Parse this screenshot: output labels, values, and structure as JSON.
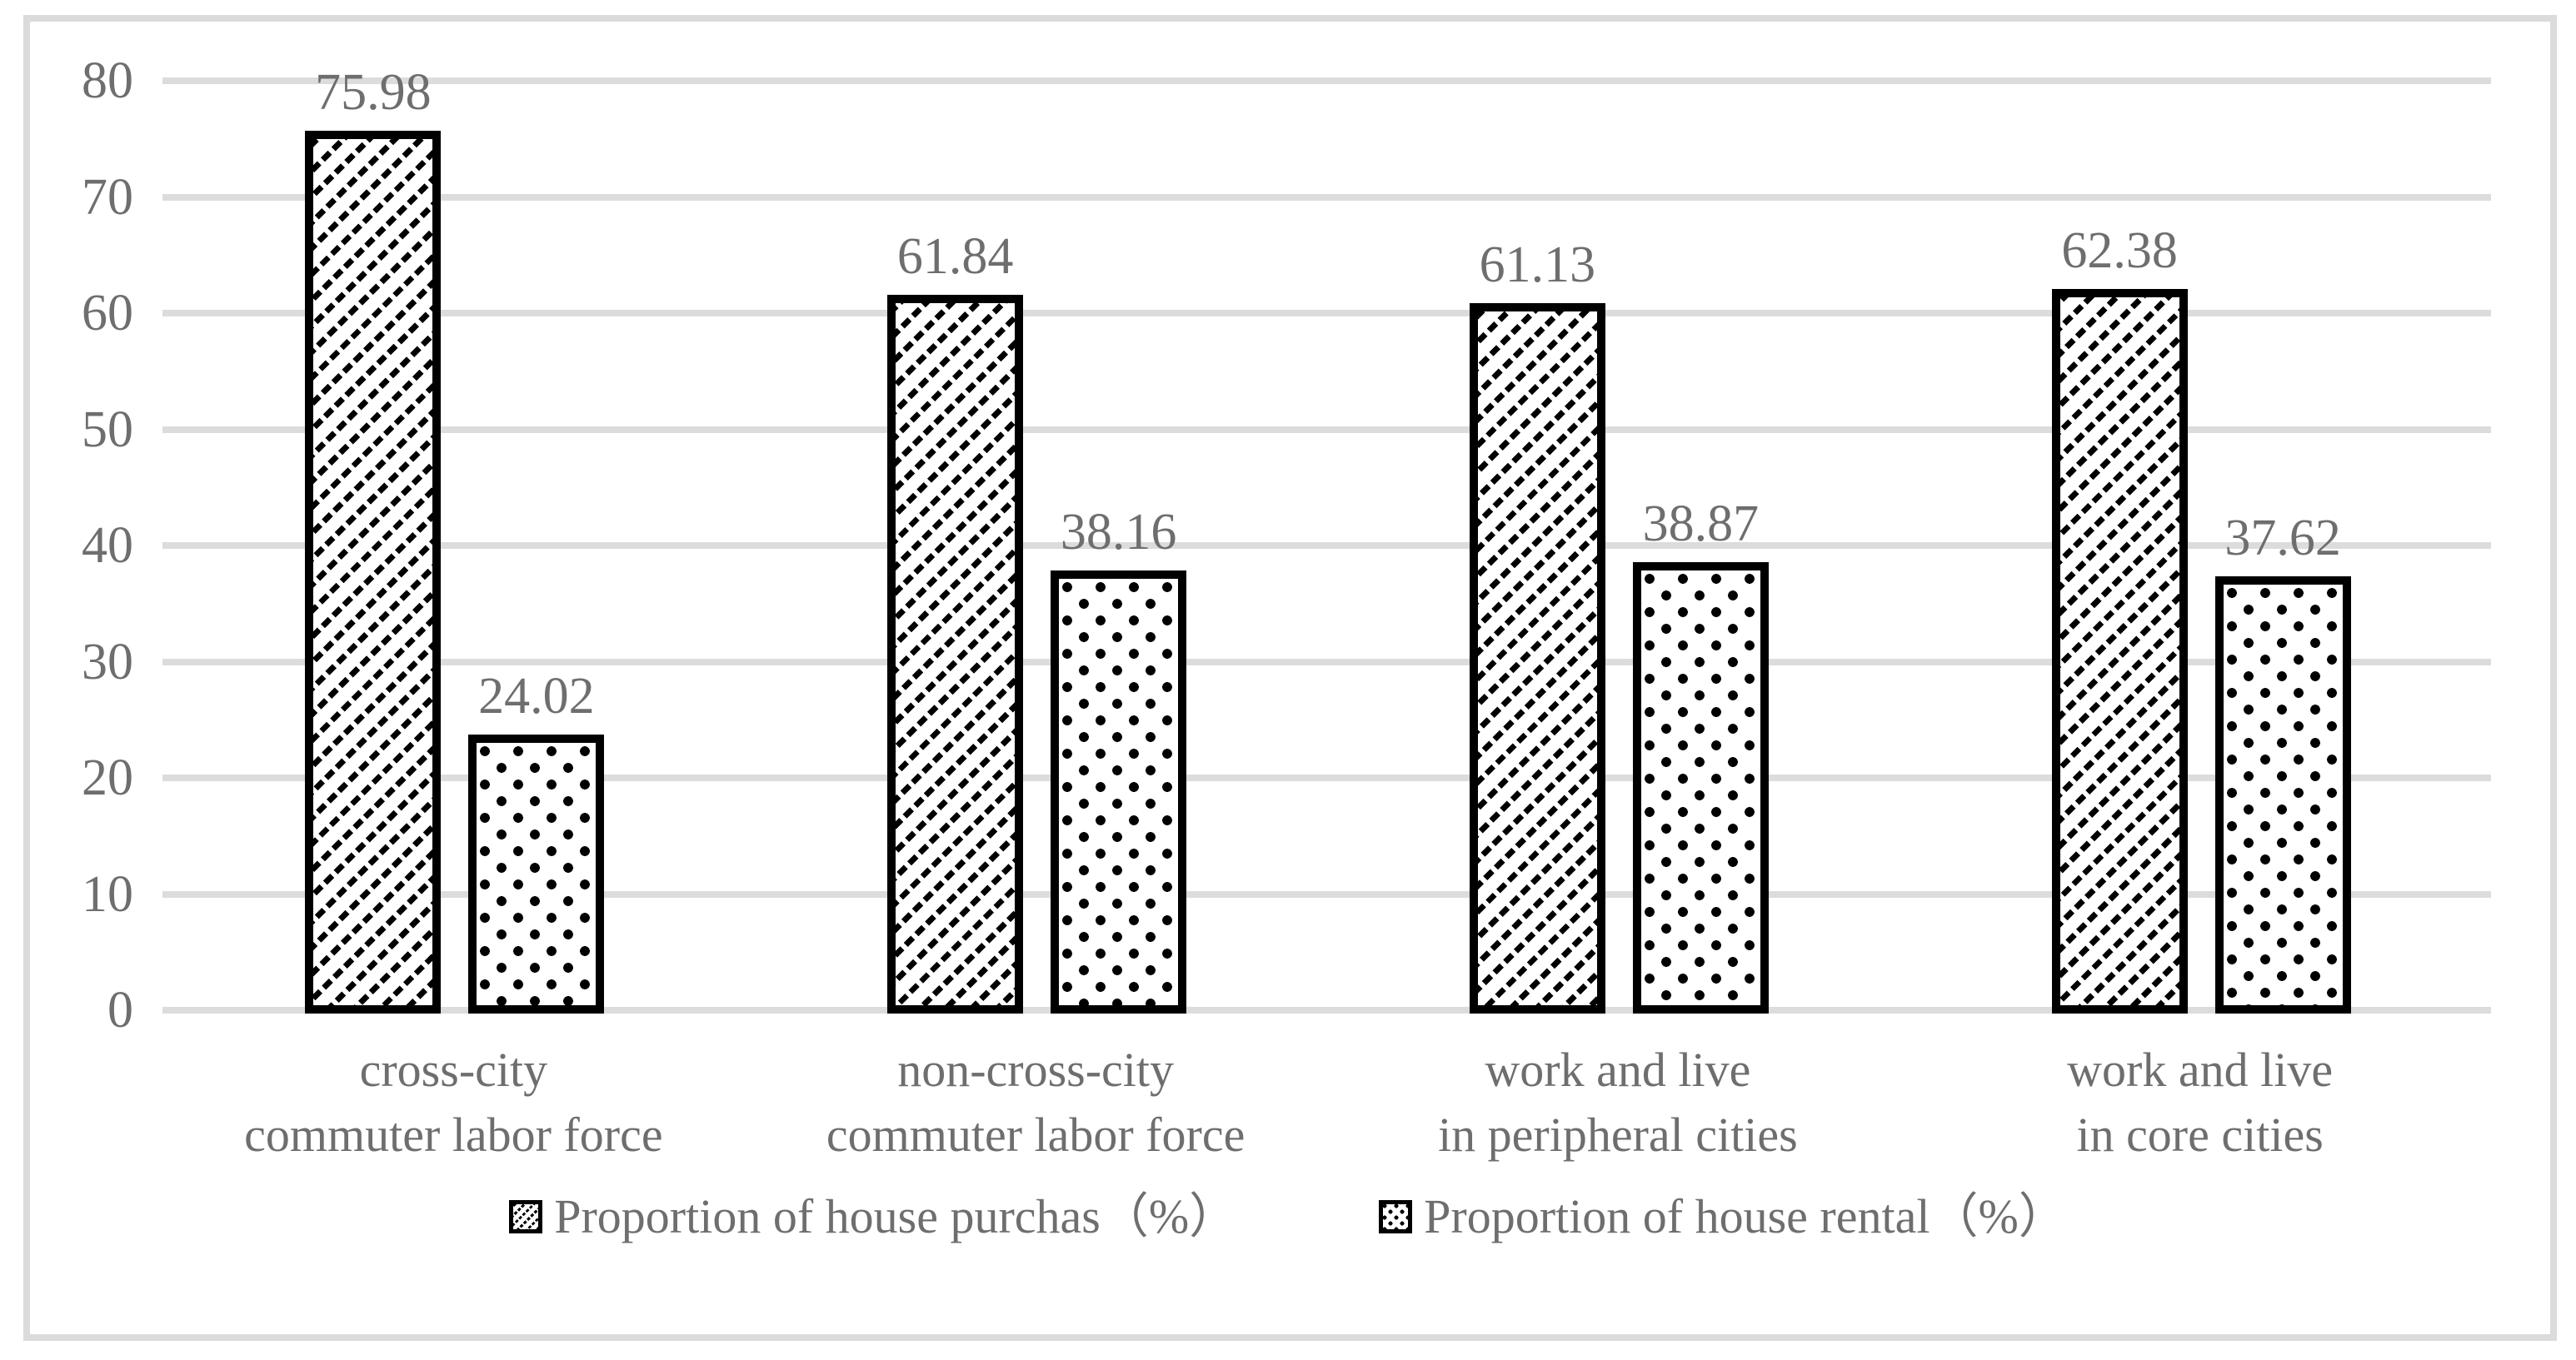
{
  "chart_data": {
    "type": "bar",
    "title": "",
    "categories": [
      "cross-city\ncommuter labor force",
      "non-cross-city\ncommuter labor force",
      "work and live\nin peripheral cities",
      "work and live\nin core cities"
    ],
    "series": [
      {
        "name": "Proportion of house purchas（%）",
        "pattern": "dashed-diagonal-hatch",
        "values": [
          75.98,
          61.84,
          61.13,
          62.38
        ]
      },
      {
        "name": "Proportion of house rental（%）",
        "pattern": "dotted",
        "values": [
          24.02,
          38.16,
          38.87,
          37.62
        ]
      }
    ],
    "data_labels": [
      "75.98",
      "24.02",
      "61.84",
      "38.16",
      "61.13",
      "38.87",
      "62.38",
      "37.62"
    ],
    "ylim": [
      0,
      80
    ],
    "yticks": [
      0,
      10,
      20,
      30,
      40,
      50,
      60,
      70,
      80
    ],
    "grid": true,
    "legend_position": "bottom",
    "bar_fill": "#ffffff",
    "bar_outline": "#000000",
    "gridline_color": "#dcdcdc",
    "frame_color": "#dbdbdb",
    "text_color": "#6e6e6e"
  }
}
